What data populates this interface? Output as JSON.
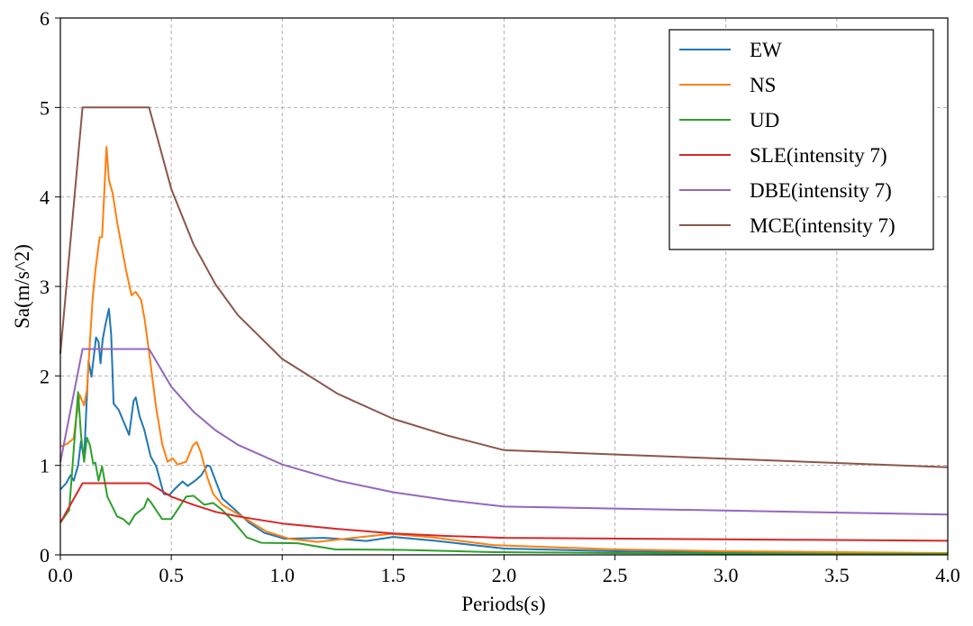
{
  "chart_data": {
    "type": "line",
    "title": "",
    "xlabel": "Periods(s)",
    "ylabel": "Sa(m/s^2)",
    "xlim": [
      0,
      4.0
    ],
    "ylim": [
      0,
      6
    ],
    "xticks": [
      "0.0",
      "0.5",
      "1.0",
      "1.5",
      "2.0",
      "2.5",
      "3.0",
      "3.5",
      "4.0"
    ],
    "xtick_values": [
      0,
      0.5,
      1.0,
      1.5,
      2.0,
      2.5,
      3.0,
      3.5,
      4.0
    ],
    "yticks": [
      "0",
      "1",
      "2",
      "3",
      "4",
      "5",
      "6"
    ],
    "ytick_values": [
      0,
      1,
      2,
      3,
      4,
      5,
      6
    ],
    "grid": true,
    "legend_position": "top-right",
    "series": [
      {
        "name": "EW",
        "color": "#1f77b4",
        "x": [
          0,
          0.026,
          0.046,
          0.06,
          0.08,
          0.093,
          0.107,
          0.127,
          0.14,
          0.161,
          0.172,
          0.181,
          0.191,
          0.204,
          0.219,
          0.229,
          0.24,
          0.263,
          0.31,
          0.33,
          0.34,
          0.357,
          0.378,
          0.407,
          0.432,
          0.466,
          0.493,
          0.513,
          0.551,
          0.574,
          0.608,
          0.635,
          0.662,
          0.675,
          0.73,
          0.784,
          0.85,
          0.92,
          1.01,
          1.19,
          1.38,
          1.5,
          1.68,
          2.0,
          2.5,
          3.0,
          3.5,
          4.0
        ],
        "y": [
          0.73,
          0.8,
          0.89,
          0.83,
          1.0,
          1.27,
          1.07,
          2.17,
          1.99,
          2.43,
          2.38,
          2.14,
          2.41,
          2.58,
          2.75,
          2.46,
          1.69,
          1.62,
          1.34,
          1.72,
          1.76,
          1.55,
          1.4,
          1.1,
          0.99,
          0.68,
          0.67,
          0.73,
          0.82,
          0.77,
          0.83,
          0.89,
          1.0,
          0.99,
          0.63,
          0.51,
          0.36,
          0.245,
          0.18,
          0.19,
          0.155,
          0.2,
          0.16,
          0.07,
          0.04,
          0.025,
          0.015,
          0.01
        ]
      },
      {
        "name": "NS",
        "color": "#ff7f0e",
        "x": [
          0,
          0.03,
          0.06,
          0.07,
          0.087,
          0.107,
          0.12,
          0.145,
          0.158,
          0.177,
          0.188,
          0.208,
          0.219,
          0.236,
          0.256,
          0.296,
          0.321,
          0.34,
          0.364,
          0.38,
          0.405,
          0.432,
          0.459,
          0.483,
          0.506,
          0.528,
          0.567,
          0.597,
          0.615,
          0.634,
          0.662,
          0.689,
          0.73,
          0.837,
          0.93,
          1.03,
          1.16,
          1.34,
          1.49,
          1.68,
          1.95,
          2.5,
          3.0,
          3.5,
          4.0
        ],
        "y": [
          1.21,
          1.24,
          1.3,
          1.5,
          1.79,
          1.67,
          1.84,
          2.85,
          3.18,
          3.55,
          3.55,
          4.56,
          4.19,
          4.04,
          3.72,
          3.18,
          2.9,
          2.94,
          2.85,
          2.63,
          2.17,
          1.64,
          1.24,
          1.04,
          1.08,
          1.01,
          1.04,
          1.22,
          1.26,
          1.14,
          0.87,
          0.68,
          0.56,
          0.4,
          0.26,
          0.18,
          0.145,
          0.195,
          0.235,
          0.195,
          0.11,
          0.06,
          0.04,
          0.03,
          0.02
        ]
      },
      {
        "name": "UD",
        "color": "#2ca02c",
        "x": [
          0,
          0.04,
          0.06,
          0.08,
          0.093,
          0.107,
          0.12,
          0.134,
          0.148,
          0.158,
          0.172,
          0.188,
          0.212,
          0.256,
          0.283,
          0.31,
          0.337,
          0.378,
          0.394,
          0.41,
          0.459,
          0.5,
          0.527,
          0.567,
          0.6,
          0.649,
          0.689,
          0.73,
          0.784,
          0.84,
          0.905,
          1.07,
          1.24,
          1.54,
          1.95,
          2.5,
          3.0,
          3.5,
          4.0
        ],
        "y": [
          0.36,
          0.5,
          1.17,
          1.82,
          1.34,
          1.04,
          1.31,
          1.22,
          1.02,
          1.03,
          0.83,
          0.99,
          0.65,
          0.43,
          0.4,
          0.34,
          0.45,
          0.53,
          0.63,
          0.58,
          0.4,
          0.4,
          0.5,
          0.65,
          0.66,
          0.56,
          0.58,
          0.5,
          0.36,
          0.195,
          0.135,
          0.13,
          0.06,
          0.055,
          0.03,
          0.02,
          0.015,
          0.01,
          0.01
        ]
      },
      {
        "name": "SLE(intensity 7)",
        "color": "#d62728",
        "x": [
          0,
          0.1,
          0.4,
          0.5,
          0.6,
          0.7,
          0.8,
          1.0,
          1.25,
          1.5,
          1.75,
          2.0,
          4.0
        ],
        "y": [
          0.36,
          0.8,
          0.8,
          0.65,
          0.56,
          0.48,
          0.43,
          0.35,
          0.29,
          0.24,
          0.21,
          0.19,
          0.157
        ]
      },
      {
        "name": "DBE(intensity 7)",
        "color": "#9467bd",
        "x": [
          0,
          0.1,
          0.4,
          0.5,
          0.6,
          0.7,
          0.8,
          1.0,
          1.25,
          1.5,
          1.75,
          2.0,
          4.0
        ],
        "y": [
          1.035,
          2.3,
          2.3,
          1.88,
          1.6,
          1.39,
          1.23,
          1.01,
          0.83,
          0.7,
          0.61,
          0.54,
          0.45
        ]
      },
      {
        "name": "MCE(intensity 7)",
        "color": "#8c564b",
        "x": [
          0,
          0.1,
          0.4,
          0.5,
          0.6,
          0.7,
          0.8,
          1.0,
          1.25,
          1.5,
          1.75,
          2.0,
          4.0
        ],
        "y": [
          2.25,
          5,
          5,
          4.09,
          3.47,
          3.02,
          2.68,
          2.19,
          1.8,
          1.52,
          1.33,
          1.17,
          0.98
        ]
      }
    ]
  }
}
